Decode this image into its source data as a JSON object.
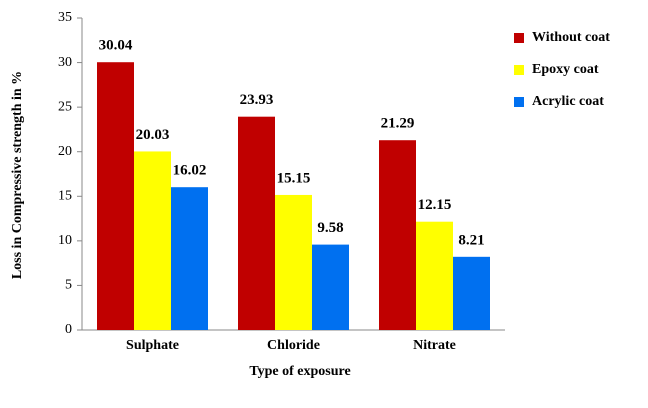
{
  "chart_data": {
    "type": "bar",
    "x_label": "Type of exposure",
    "y_label": "Loss in Compressive strength in %",
    "categories": [
      "Sulphate",
      "Chloride",
      "Nitrate"
    ],
    "series": [
      {
        "name": "Without coat",
        "color": "#c00000",
        "values": [
          30.04,
          23.93,
          21.29
        ]
      },
      {
        "name": "Epoxy coat",
        "color": "#ffff00",
        "values": [
          20.03,
          15.15,
          12.15
        ]
      },
      {
        "name": "Acrylic coat",
        "color": "#0070f0",
        "values": [
          16.02,
          9.58,
          8.21
        ]
      }
    ],
    "ylim": [
      0,
      35
    ],
    "yticks": [
      0,
      5,
      10,
      15,
      20,
      25,
      30,
      35
    ],
    "grid": false,
    "legend": "right"
  }
}
